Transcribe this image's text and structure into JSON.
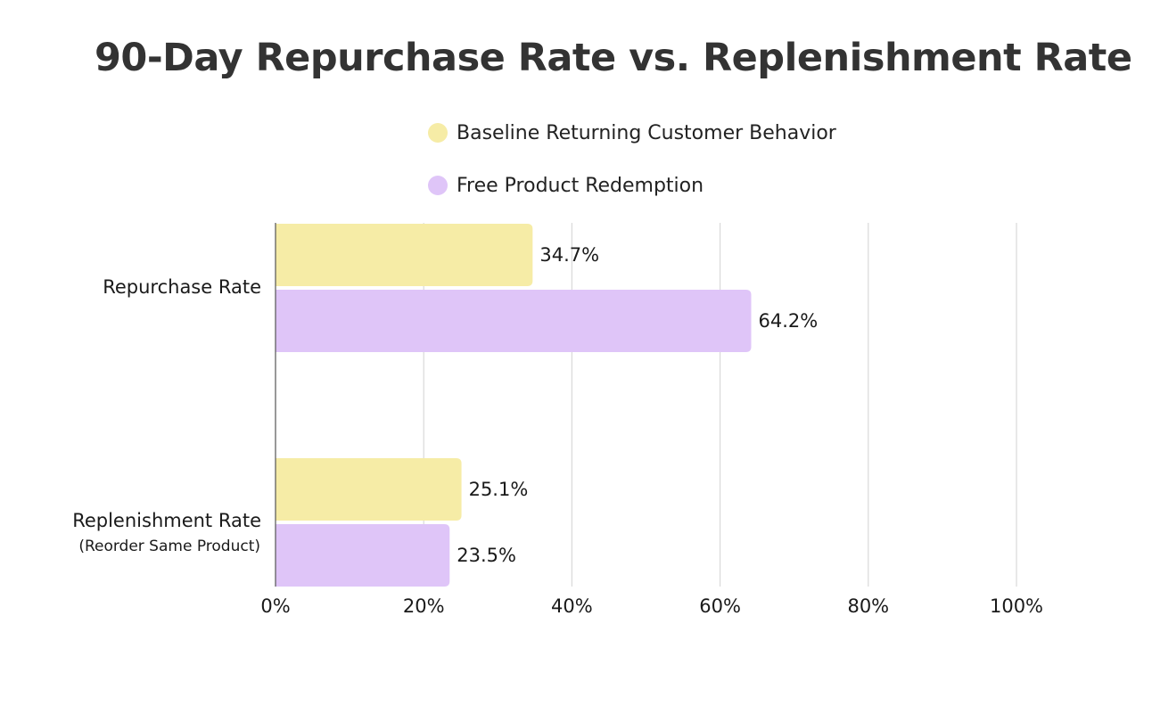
{
  "chart_data": {
    "type": "bar",
    "orientation": "horizontal",
    "title": "90-Day Repurchase Rate vs. Replenishment Rate",
    "categories": [
      {
        "label": "Repurchase Rate",
        "sublabel": ""
      },
      {
        "label": "Replenishment Rate",
        "sublabel": "(Reorder Same Product)"
      }
    ],
    "series": [
      {
        "name": "Baseline Returning Customer Behavior",
        "color": "#F6ECA6",
        "values": [
          34.7,
          25.1
        ],
        "labels": [
          "34.7%",
          "25.1%"
        ]
      },
      {
        "name": "Free Product Redemption",
        "color": "#DFC5F8",
        "values": [
          64.2,
          23.5
        ],
        "labels": [
          "64.2%",
          "23.5%"
        ]
      }
    ],
    "xlim": [
      0,
      100
    ],
    "xticks": [
      0,
      20,
      40,
      60,
      80,
      100
    ],
    "xtick_labels": [
      "0%",
      "20%",
      "40%",
      "60%",
      "80%",
      "100%"
    ],
    "xlabel": "",
    "ylabel": "",
    "grid": true,
    "legend_position": "top"
  }
}
